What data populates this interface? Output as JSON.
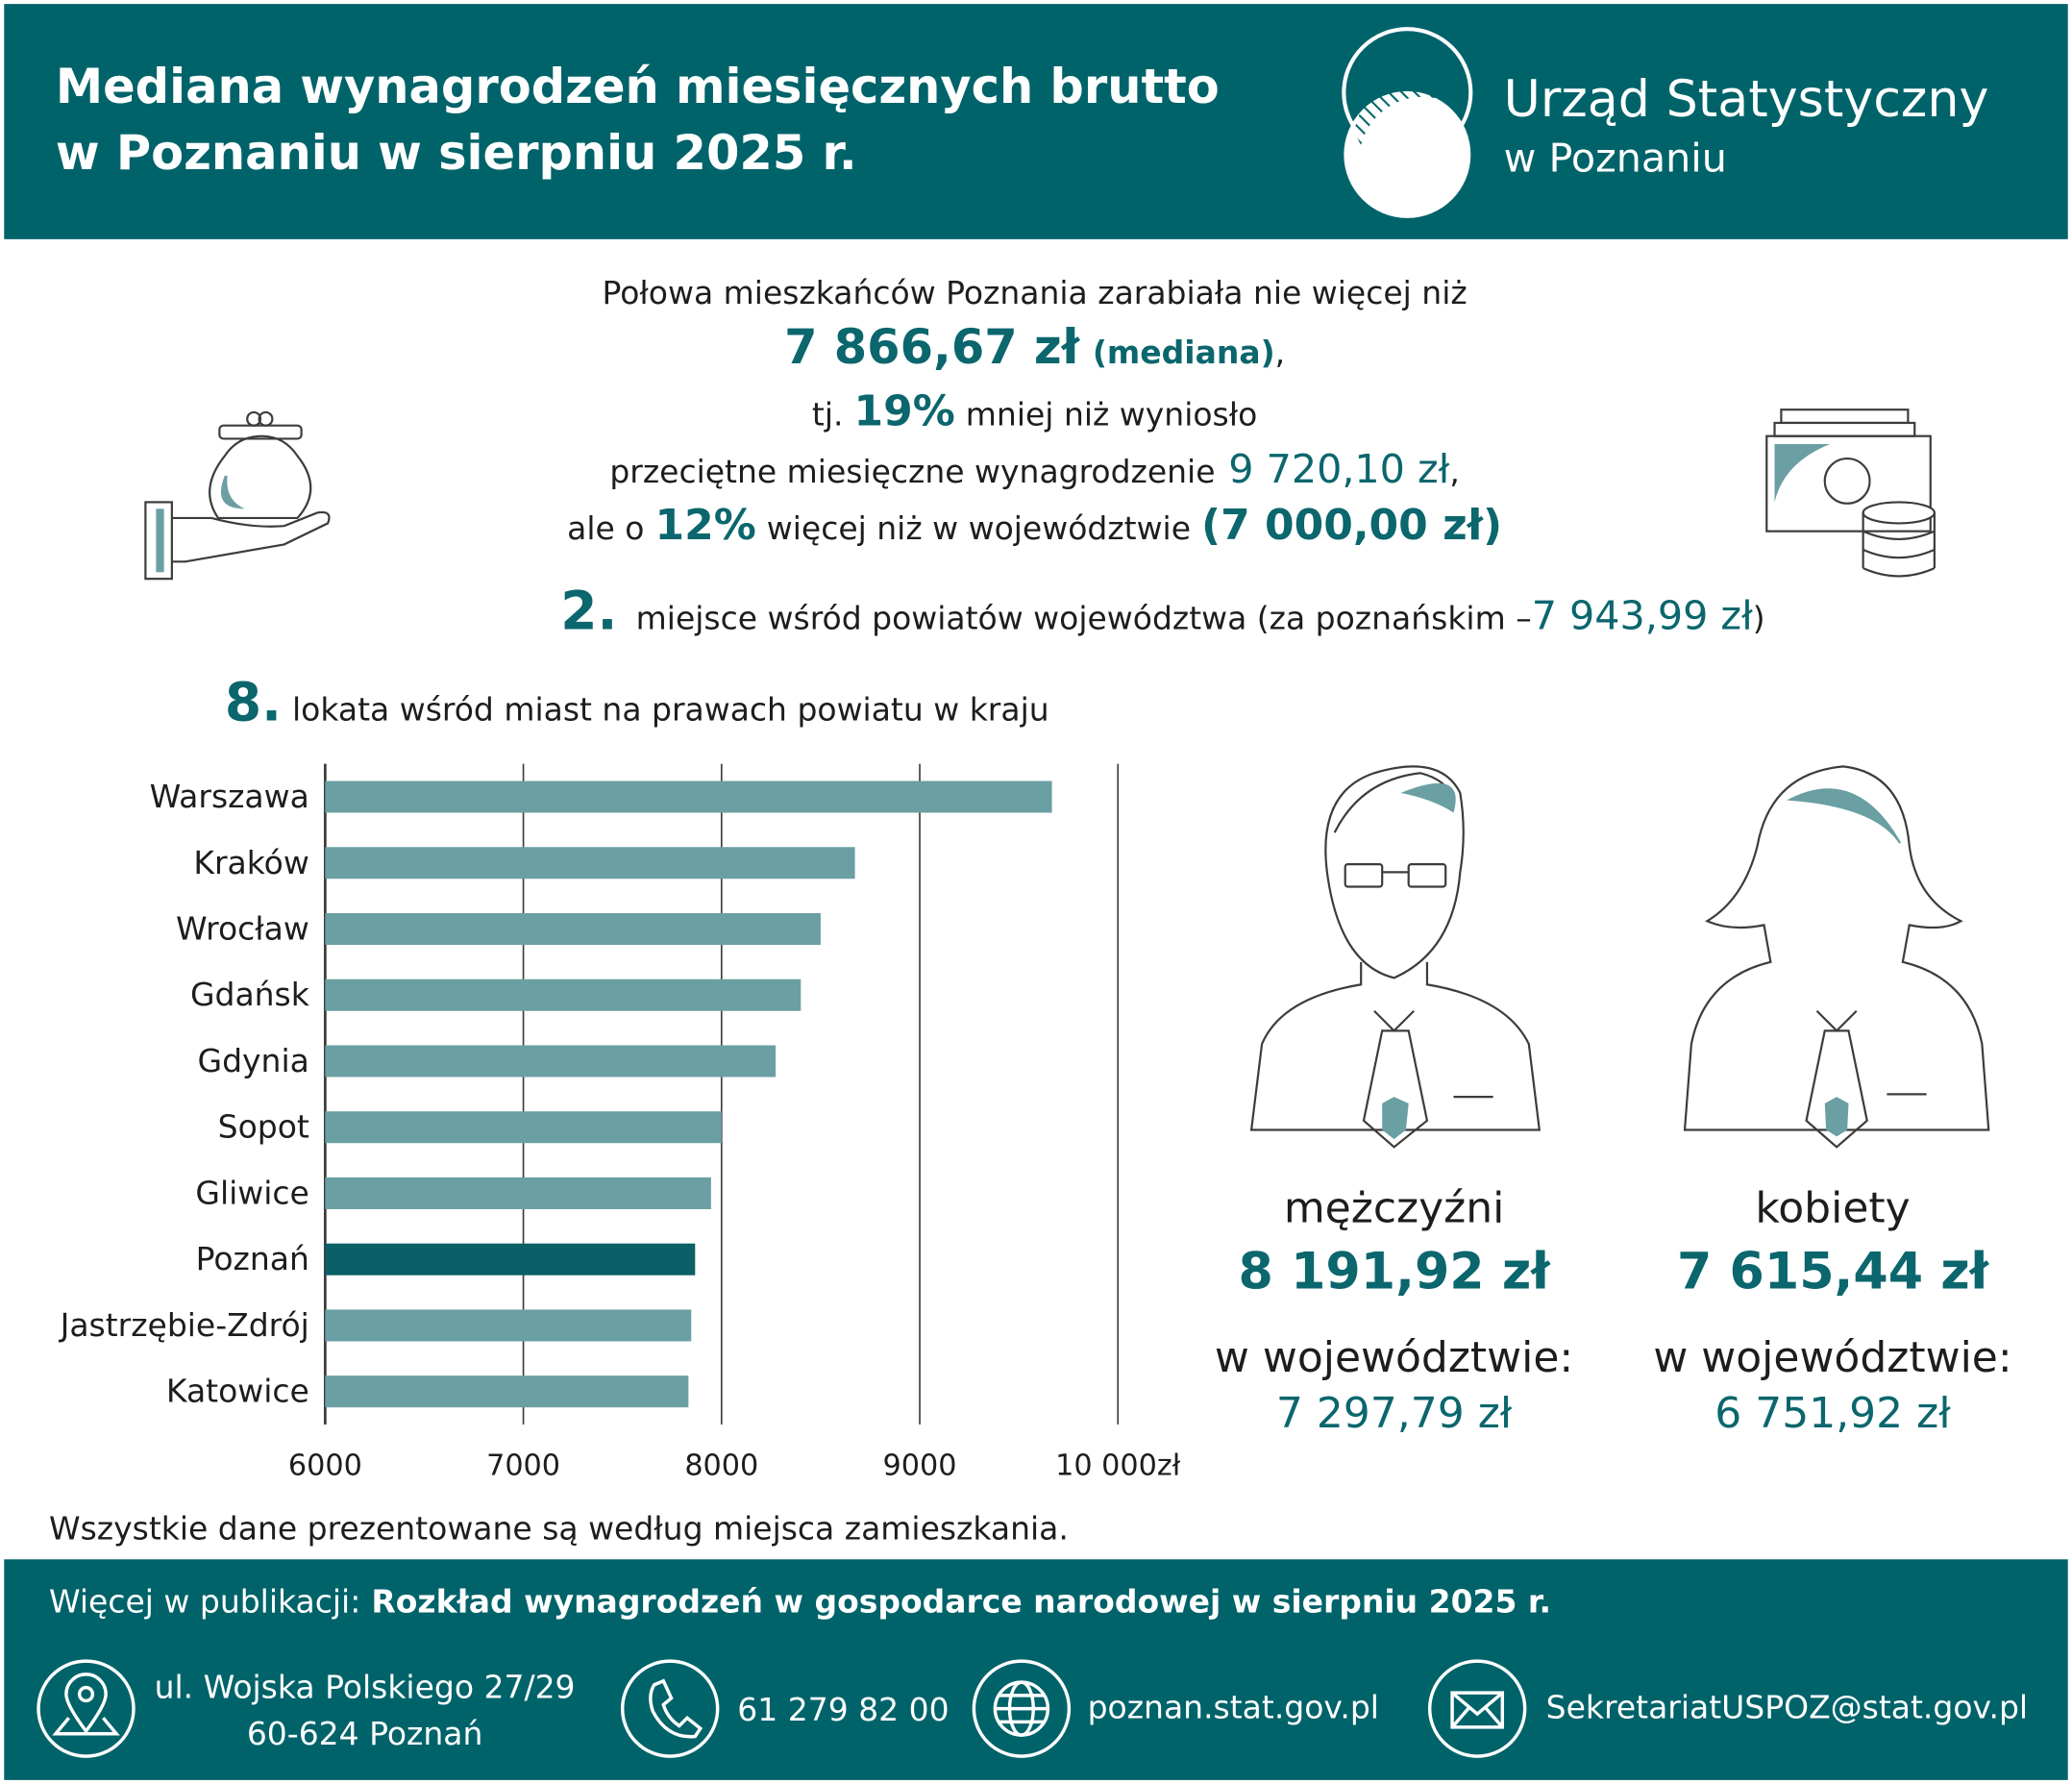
{
  "header": {
    "title_lines": [
      "Mediana wynagrodzeń miesięcznych brutto",
      "w Poznaniu w sierpniu 2025 r."
    ],
    "logo_lines": [
      "Urząd Statystyczny",
      "w Poznaniu"
    ]
  },
  "summary": {
    "line1": "Połowa mieszkańców Poznania zarabiała nie więcej niż",
    "median": "7 866,67 zł",
    "median_note": "(mediana)",
    "comma": ",",
    "line3_a": "tj.",
    "line3_pct": "19%",
    "line3_b": "mniej niż wyniosło",
    "line4_a": "przeciętne miesięczne wynagrodzenie",
    "line4_value": "9 720,10 zł",
    "line4_b": ",",
    "line5_a": "ale o",
    "line5_pct": "12%",
    "line5_b": "więcej niż w województwie",
    "line5_value": "(7 000,00 zł)",
    "rank_number": "2.",
    "rank_text": "miejsce wśród powiatów województwa (za poznańskim –",
    "rank_value": "7 943,99 zł",
    "rank_close": ")"
  },
  "chart_data": {
    "type": "bar",
    "orientation": "horizontal",
    "title_number": "8.",
    "title": "lokata wśród miast na prawach powiatu w kraju",
    "categories": [
      "Warszawa",
      "Kraków",
      "Wrocław",
      "Gdańsk",
      "Gdynia",
      "Sopot",
      "Gliwice",
      "Poznań",
      "Jastrzębie-Zdrój",
      "Katowice"
    ],
    "values": [
      9667,
      8673,
      8500,
      8400,
      8273,
      8000,
      7947,
      7866.67,
      7847,
      7833
    ],
    "colors": [
      "#6a9fa3",
      "#6a9fa3",
      "#6a9fa3",
      "#6a9fa3",
      "#6a9fa3",
      "#6a9fa3",
      "#6a9fa3",
      "#0b5f66",
      "#6a9fa3",
      "#6a9fa3"
    ],
    "xlim": [
      6000,
      10000
    ],
    "xticks": [
      6000,
      7000,
      8000,
      9000,
      {
        "value": 10000,
        "label": "10 000zł"
      }
    ],
    "grid": true
  },
  "gender": [
    {
      "label": "mężczyźni",
      "value": "8 191,92 zł",
      "region_label": "w województwie:",
      "region_value": "7 297,79 zł"
    },
    {
      "label": "kobiety",
      "value": "7 615,44 zł",
      "region_label": "w województwie:",
      "region_value": "6 751,92 zł"
    }
  ],
  "note": "Wszystkie dane prezentowane są według miejsca zamieszkania.",
  "footer": {
    "more_label": "Więcej w publikacji:",
    "publication": "Rozkład wynagrodzeń w gospodarce narodowej w sierpniu 2025 r.",
    "address_lines": [
      "ul. Wojska Polskiego 27/29",
      "60-624 Poznań"
    ],
    "phone": "61 279 82 00",
    "website": "poznan.stat.gov.pl",
    "email": "SekretariatUSPOZ@stat.gov.pl"
  }
}
